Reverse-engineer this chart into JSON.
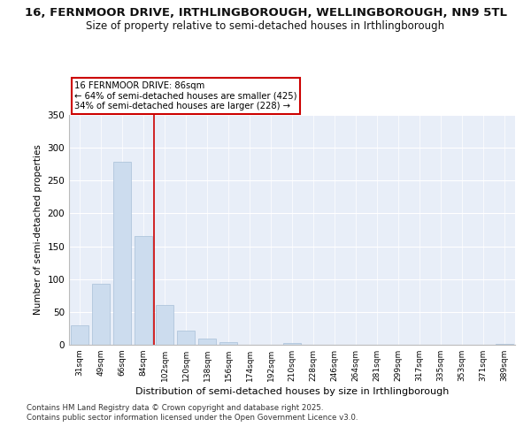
{
  "title_line1": "16, FERNMOOR DRIVE, IRTHLINGBOROUGH, WELLINGBOROUGH, NN9 5TL",
  "title_line2": "Size of property relative to semi-detached houses in Irthlingborough",
  "xlabel": "Distribution of semi-detached houses by size in Irthlingborough",
  "ylabel": "Number of semi-detached properties",
  "categories": [
    "31sqm",
    "49sqm",
    "66sqm",
    "84sqm",
    "102sqm",
    "120sqm",
    "138sqm",
    "156sqm",
    "174sqm",
    "192sqm",
    "210sqm",
    "228sqm",
    "246sqm",
    "264sqm",
    "281sqm",
    "299sqm",
    "317sqm",
    "335sqm",
    "353sqm",
    "371sqm",
    "389sqm"
  ],
  "values": [
    30,
    93,
    278,
    165,
    60,
    22,
    10,
    4,
    0,
    0,
    3,
    0,
    0,
    0,
    0,
    0,
    0,
    0,
    0,
    0,
    2
  ],
  "bar_color": "#ccdcee",
  "bar_edge_color": "#a8c0d8",
  "vline_x": 3.5,
  "vline_color": "#cc0000",
  "annotation_title": "16 FERNMOOR DRIVE: 86sqm",
  "annotation_line1": "← 64% of semi-detached houses are smaller (425)",
  "annotation_line2": "34% of semi-detached houses are larger (228) →",
  "annotation_box_color": "#cc0000",
  "footnote_line1": "Contains HM Land Registry data © Crown copyright and database right 2025.",
  "footnote_line2": "Contains public sector information licensed under the Open Government Licence v3.0.",
  "ylim": [
    0,
    350
  ],
  "yticks": [
    0,
    50,
    100,
    150,
    200,
    250,
    300,
    350
  ],
  "background_color": "#e8eef8",
  "grid_color": "#ffffff",
  "title_fontsize": 9.5,
  "subtitle_fontsize": 8.5
}
